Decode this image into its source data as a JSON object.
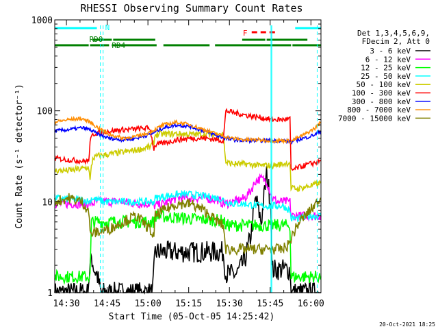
{
  "chart_data": {
    "type": "line",
    "title": "RHESSI Observing Summary Count Rates",
    "xlabel": "Start Time (05-Oct-05 14:25:42)",
    "ylabel": "Count Rate (s⁻¹ detector⁻¹)",
    "y_scale": "log",
    "ylim": [
      1,
      1000
    ],
    "xlim_minutes": [
      0,
      98
    ],
    "x_tick_labels": [
      {
        "label": "14:30",
        "minute": 4.3
      },
      {
        "label": "14:45",
        "minute": 19.3
      },
      {
        "label": "15:00",
        "minute": 34.3
      },
      {
        "label": "15:15",
        "minute": 49.3
      },
      {
        "label": "15:30",
        "minute": 64.3
      },
      {
        "label": "15:45",
        "minute": 79.3
      },
      {
        "label": "16:00",
        "minute": 94.3
      }
    ],
    "y_tick_labels": [
      {
        "label": "1",
        "value": 1
      },
      {
        "label": "10",
        "value": 10
      },
      {
        "label": "100",
        "value": 100
      },
      {
        "label": "1000",
        "value": 1000
      }
    ],
    "legend_header": [
      "Det 1,3,4,5,6,9,",
      "FDecim 2, Att 0"
    ],
    "legend_position": "right",
    "series": [
      {
        "name": "3 - 6 keV",
        "color": "#000000",
        "x": [
          0,
          4,
          8,
          12,
          13.5,
          14.5,
          15.5,
          17,
          20,
          30,
          36,
          37,
          40,
          45,
          50,
          55,
          60,
          62,
          63,
          67,
          70,
          72,
          74,
          76,
          78,
          79.5,
          80,
          84,
          86.6,
          87,
          88,
          92,
          96,
          98
        ],
        "y": [
          1,
          1,
          1,
          1,
          2.5,
          1.8,
          1.6,
          1,
          1,
          1,
          1,
          2.8,
          2.8,
          2.8,
          2.8,
          2.8,
          2.8,
          2.8,
          1.6,
          1.6,
          2.3,
          4,
          11,
          6,
          20,
          10,
          1.8,
          1.8,
          1.8,
          1,
          1,
          1,
          1,
          1
        ]
      },
      {
        "name": "6 - 12 keV",
        "color": "#ff00ff",
        "x": [
          0,
          5,
          10,
          13,
          13.5,
          16,
          20,
          25,
          30,
          35,
          36.5,
          40,
          45,
          50,
          55,
          60,
          62,
          63,
          66,
          70,
          72,
          74,
          76,
          78,
          80,
          82,
          84,
          86.6,
          87,
          90,
          94,
          98
        ],
        "y": [
          9.5,
          9.5,
          9.5,
          9.5,
          9.5,
          10,
          10,
          10,
          9.5,
          9.5,
          9,
          9.5,
          11,
          11,
          11,
          10.5,
          9.5,
          9.5,
          10,
          11,
          13,
          17,
          18,
          17,
          11,
          10,
          10,
          10,
          7,
          7,
          7,
          7
        ]
      },
      {
        "name": "12 - 25 keV",
        "color": "#00ff00",
        "x": [
          0,
          13,
          13.5,
          17,
          25,
          36.5,
          37,
          50,
          62,
          63,
          70,
          75,
          80,
          84,
          86.6,
          87,
          98
        ],
        "y": [
          1.5,
          1.5,
          6,
          6,
          6,
          6,
          7,
          6.5,
          6.2,
          5.5,
          5.5,
          5.5,
          5.5,
          5.5,
          5.5,
          1.5,
          1.5
        ]
      },
      {
        "name": "25 - 50 keV",
        "color": "#00ffff",
        "x": [
          0,
          6,
          10,
          13,
          13.5,
          18,
          25,
          30,
          34,
          36.5,
          37,
          45,
          50,
          55,
          60,
          62,
          63,
          66,
          70,
          75,
          80,
          84,
          86.6,
          87,
          90,
          94,
          98
        ],
        "y": [
          11,
          10.5,
          10.5,
          10,
          11,
          10,
          10,
          10,
          10,
          10,
          11,
          12,
          12,
          11.5,
          11,
          10.5,
          10,
          9.5,
          9.5,
          9,
          9,
          9,
          8,
          6.5,
          6.5,
          7,
          7
        ]
      },
      {
        "name": "50 - 100 keV",
        "color": "#cccc00",
        "x": [
          0,
          5,
          10,
          12.5,
          13,
          13.5,
          14,
          16,
          25,
          30,
          35,
          36.5,
          37,
          45,
          50,
          55,
          60,
          62,
          63,
          66,
          70,
          75,
          80,
          84,
          86.6,
          87,
          90,
          94,
          98
        ],
        "y": [
          22,
          22,
          23,
          24,
          17,
          24,
          30,
          32,
          35,
          37,
          40,
          45,
          55,
          56,
          55,
          55,
          55,
          56,
          27,
          26,
          26,
          25,
          25,
          26,
          27,
          14,
          14,
          15,
          16
        ]
      },
      {
        "name": "100 - 300 keV",
        "color": "#ff0000",
        "x": [
          0,
          5,
          10,
          12.5,
          13,
          13.5,
          14,
          16,
          25,
          30,
          35,
          36.5,
          37,
          45,
          50,
          55,
          60,
          62,
          63,
          66,
          70,
          75,
          80,
          84,
          86.6,
          87,
          90,
          94,
          98
        ],
        "y": [
          30,
          29,
          28,
          28,
          45,
          50,
          55,
          58,
          62,
          63,
          65,
          38,
          42,
          48,
          50,
          50,
          48,
          47,
          100,
          95,
          90,
          85,
          80,
          80,
          82,
          22,
          24,
          26,
          28
        ]
      },
      {
        "name": "300 - 800 keV",
        "color": "#0000ff",
        "x": [
          0,
          5,
          10,
          13,
          16,
          20,
          25,
          30,
          35,
          40,
          45,
          50,
          55,
          60,
          65,
          70,
          75,
          80,
          85,
          87,
          88,
          92,
          96,
          98
        ],
        "y": [
          60,
          62,
          65,
          62,
          55,
          50,
          48,
          50,
          55,
          65,
          70,
          67,
          60,
          53,
          48,
          47,
          47,
          47,
          47,
          45,
          47,
          50,
          55,
          60
        ]
      },
      {
        "name": "800 - 7000 keV",
        "color": "#ff8c00",
        "x": [
          0,
          5,
          10,
          13,
          16,
          20,
          25,
          30,
          35,
          40,
          45,
          50,
          55,
          60,
          65,
          70,
          75,
          80,
          85,
          87,
          88,
          92,
          96,
          98
        ],
        "y": [
          75,
          80,
          82,
          75,
          65,
          55,
          50,
          52,
          58,
          70,
          75,
          70,
          62,
          55,
          50,
          48,
          48,
          47,
          47,
          46,
          48,
          55,
          65,
          75
        ]
      },
      {
        "name": "7000 - 15000 keV",
        "color": "#808000",
        "x": [
          0,
          5,
          10,
          12.5,
          13,
          14,
          20,
          25,
          30,
          35,
          36.5,
          37,
          40,
          45,
          50,
          55,
          60,
          62,
          63,
          66,
          70,
          75,
          80,
          84,
          86.6,
          87,
          90,
          94,
          98
        ],
        "y": [
          10,
          11,
          10,
          8,
          4.5,
          4.5,
          5,
          6,
          7,
          5,
          4,
          7,
          8,
          9.5,
          9.5,
          8,
          6,
          5.5,
          3,
          3,
          3,
          3,
          3,
          3,
          3.5,
          4,
          6,
          8,
          11
        ]
      }
    ],
    "annotations": [
      {
        "text": "N",
        "minute": 17.8,
        "kind": "label"
      },
      {
        "text": "RD0",
        "minute": 14,
        "kind": "label"
      },
      {
        "text": "RD4",
        "minute": 21.5,
        "kind": "label"
      },
      {
        "text": "F",
        "minute": 69,
        "kind": "label"
      }
    ],
    "timestamp": "20-Oct-2021 18:25"
  }
}
